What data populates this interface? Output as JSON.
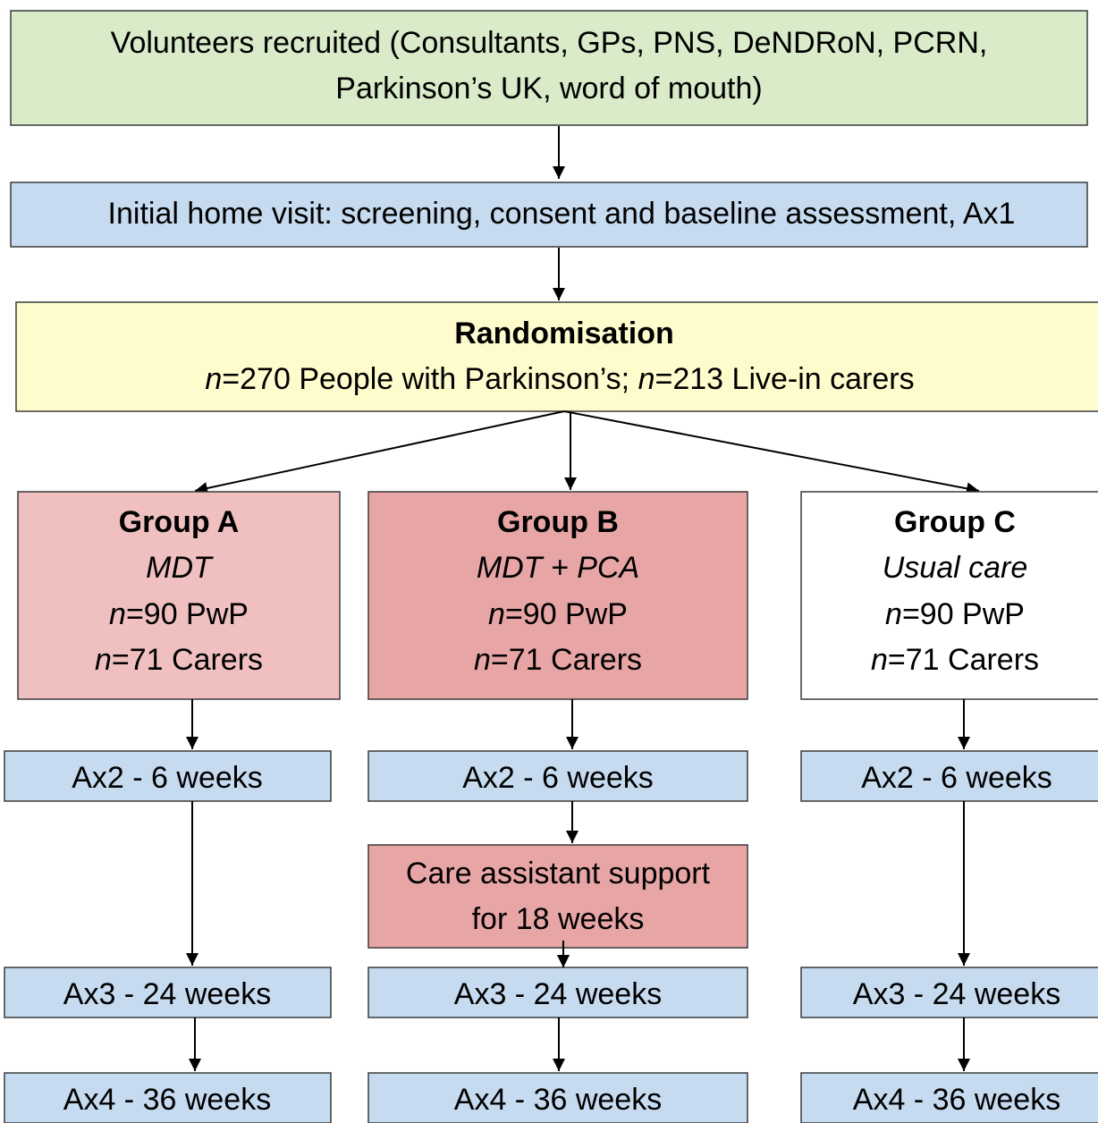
{
  "recruitment": {
    "lines": [
      "Volunteers recruited (Consultants, GPs, PNS, DeNDRoN, PCRN,",
      "Parkinson’s UK, word of mouth)"
    ]
  },
  "visit": {
    "text": "Initial home visit: screening, consent and baseline assessment, Ax1"
  },
  "randomisation": {
    "title": "Randomisation",
    "runs": [
      "n",
      "=270 People with Parkinson’s; ",
      "n",
      "=213 Live-in carers"
    ]
  },
  "groups": [
    {
      "name": "Group A",
      "arm": "MDT",
      "pwp": [
        "n",
        "=90 PwP"
      ],
      "carers": [
        "n",
        "=71 Carers"
      ],
      "assessments": [
        "Ax2 - 6 weeks",
        "Ax3 - 24 weeks",
        "Ax4 - 36 weeks"
      ]
    },
    {
      "name": "Group B",
      "arm": "MDT + PCA",
      "pwp": [
        "n",
        "=90 PwP"
      ],
      "carers": [
        "n",
        "=71 Carers"
      ],
      "assessments": [
        "Ax2 - 6 weeks",
        "Ax3 - 24 weeks",
        "Ax4 - 36 weeks"
      ]
    },
    {
      "name": "Group C",
      "arm": "Usual care",
      "pwp": [
        "n",
        "=90 PwP"
      ],
      "carers": [
        "n",
        "=71 Carers"
      ],
      "assessments": [
        "Ax2 - 6 weeks",
        "Ax3 - 24 weeks",
        "Ax4 - 36 weeks"
      ]
    }
  ],
  "care_support": {
    "lines": [
      "Care assistant support",
      "for 18 weeks"
    ]
  }
}
